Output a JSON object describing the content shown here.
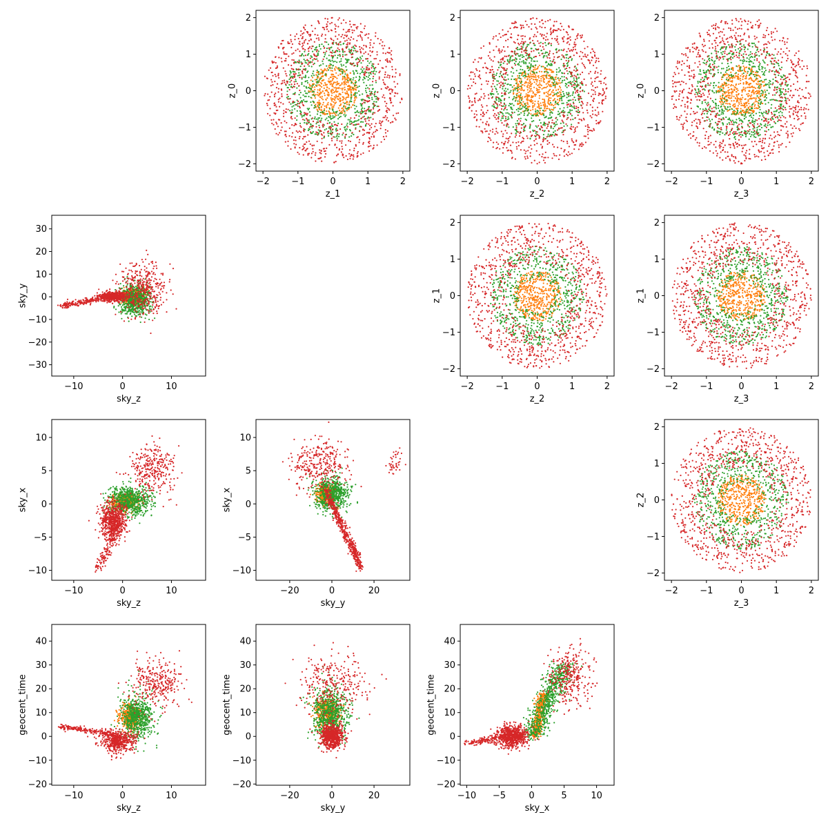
{
  "figure": {
    "colors": {
      "orange": "#ff7f0e",
      "green": "#2ca02c",
      "red": "#d62728",
      "frame": "#000000",
      "background": "#ffffff"
    }
  },
  "chart_data": [
    {
      "type": "scatter",
      "row": 0,
      "col": 1,
      "xlabel": "z_1",
      "ylabel": "z_0",
      "xlim": [
        -2.2,
        2.2
      ],
      "ylim": [
        -2.2,
        2.2
      ],
      "xticks": [
        -2,
        -1,
        0,
        1,
        2
      ],
      "yticks": [
        -2,
        -1,
        0,
        1,
        2
      ],
      "grid": false,
      "clusters": [
        {
          "color": "orange",
          "shape": "disk",
          "cx": 0,
          "cy": 0,
          "rx": 0.7,
          "ry": 0.7,
          "inner": 0,
          "count": 450
        },
        {
          "color": "green",
          "shape": "ring",
          "cx": 0,
          "cy": 0,
          "rx": 1.35,
          "ry": 1.35,
          "inner": 0.35,
          "count": 650
        },
        {
          "color": "red",
          "shape": "ring",
          "cx": 0,
          "cy": 0,
          "rx": 2.0,
          "ry": 2.0,
          "inner": 0.45,
          "count": 900
        }
      ]
    },
    {
      "type": "scatter",
      "row": 0,
      "col": 2,
      "xlabel": "z_2",
      "ylabel": "z_0",
      "xlim": [
        -2.2,
        2.2
      ],
      "ylim": [
        -2.2,
        2.2
      ],
      "xticks": [
        -2,
        -1,
        0,
        1,
        2
      ],
      "yticks": [
        -2,
        -1,
        0,
        1,
        2
      ],
      "grid": false,
      "clusters": [
        {
          "color": "orange",
          "shape": "disk",
          "cx": 0,
          "cy": 0,
          "rx": 0.7,
          "ry": 0.7,
          "inner": 0,
          "count": 450
        },
        {
          "color": "green",
          "shape": "ring",
          "cx": 0,
          "cy": 0,
          "rx": 1.35,
          "ry": 1.35,
          "inner": 0.35,
          "count": 650
        },
        {
          "color": "red",
          "shape": "ring",
          "cx": 0,
          "cy": 0,
          "rx": 2.0,
          "ry": 2.0,
          "inner": 0.45,
          "count": 900
        }
      ]
    },
    {
      "type": "scatter",
      "row": 0,
      "col": 3,
      "xlabel": "z_3",
      "ylabel": "z_0",
      "xlim": [
        -2.2,
        2.2
      ],
      "ylim": [
        -2.2,
        2.2
      ],
      "xticks": [
        -2,
        -1,
        0,
        1,
        2
      ],
      "yticks": [
        -2,
        -1,
        0,
        1,
        2
      ],
      "grid": false,
      "clusters": [
        {
          "color": "orange",
          "shape": "disk",
          "cx": 0,
          "cy": 0,
          "rx": 0.7,
          "ry": 0.7,
          "inner": 0,
          "count": 450
        },
        {
          "color": "green",
          "shape": "ring",
          "cx": 0,
          "cy": 0,
          "rx": 1.35,
          "ry": 1.35,
          "inner": 0.35,
          "count": 650
        },
        {
          "color": "red",
          "shape": "ring",
          "cx": 0,
          "cy": 0,
          "rx": 2.0,
          "ry": 2.0,
          "inner": 0.45,
          "count": 900
        }
      ]
    },
    {
      "type": "scatter",
      "row": 1,
      "col": 0,
      "xlabel": "sky_z",
      "ylabel": "sky_y",
      "xlim": [
        -14.5,
        17
      ],
      "ylim": [
        -35,
        36
      ],
      "xticks": [
        -10,
        0,
        10
      ],
      "yticks": [
        -30,
        -20,
        -10,
        0,
        10,
        20,
        30
      ],
      "grid": false,
      "clusters": [
        {
          "color": "orange",
          "shape": "gauss",
          "cx": 2,
          "cy": 0,
          "rx": 2.0,
          "ry": 3.0,
          "inner": 0,
          "count": 450
        },
        {
          "color": "green",
          "shape": "gauss",
          "cx": 2.5,
          "cy": -1,
          "rx": 3.0,
          "ry": 6.5,
          "inner": 0,
          "count": 650
        },
        {
          "color": "red",
          "shape": "gauss",
          "cx": -2,
          "cy": 0,
          "rx": 2.5,
          "ry": 2.0,
          "inner": 0,
          "count": 500
        },
        {
          "color": "red",
          "shape": "line",
          "x0": -12.5,
          "y0": -4,
          "x1": -3,
          "y1": 0,
          "spread": 1.2,
          "count": 200
        },
        {
          "color": "red",
          "shape": "gauss",
          "cx": 4,
          "cy": 3,
          "rx": 4.5,
          "ry": 11,
          "inner": 0,
          "count": 400
        }
      ]
    },
    {
      "type": "scatter",
      "row": 1,
      "col": 2,
      "xlabel": "z_2",
      "ylabel": "z_1",
      "xlim": [
        -2.2,
        2.2
      ],
      "ylim": [
        -2.2,
        2.2
      ],
      "xticks": [
        -2,
        -1,
        0,
        1,
        2
      ],
      "yticks": [
        -2,
        -1,
        0,
        1,
        2
      ],
      "grid": false,
      "clusters": [
        {
          "color": "orange",
          "shape": "disk",
          "cx": 0,
          "cy": 0,
          "rx": 0.7,
          "ry": 0.7,
          "inner": 0,
          "count": 450
        },
        {
          "color": "green",
          "shape": "ring",
          "cx": 0,
          "cy": 0,
          "rx": 1.35,
          "ry": 1.35,
          "inner": 0.35,
          "count": 650
        },
        {
          "color": "red",
          "shape": "ring",
          "cx": 0,
          "cy": 0,
          "rx": 2.0,
          "ry": 2.0,
          "inner": 0.45,
          "count": 900
        }
      ]
    },
    {
      "type": "scatter",
      "row": 1,
      "col": 3,
      "xlabel": "z_3",
      "ylabel": "z_1",
      "xlim": [
        -2.2,
        2.2
      ],
      "ylim": [
        -2.2,
        2.2
      ],
      "xticks": [
        -2,
        -1,
        0,
        1,
        2
      ],
      "yticks": [
        -2,
        -1,
        0,
        1,
        2
      ],
      "grid": false,
      "clusters": [
        {
          "color": "orange",
          "shape": "disk",
          "cx": 0,
          "cy": 0,
          "rx": 0.7,
          "ry": 0.7,
          "inner": 0,
          "count": 450
        },
        {
          "color": "green",
          "shape": "ring",
          "cx": 0,
          "cy": 0,
          "rx": 1.35,
          "ry": 1.35,
          "inner": 0.35,
          "count": 650
        },
        {
          "color": "red",
          "shape": "ring",
          "cx": 0,
          "cy": 0,
          "rx": 2.0,
          "ry": 2.0,
          "inner": 0.45,
          "count": 900
        }
      ]
    },
    {
      "type": "scatter",
      "row": 2,
      "col": 0,
      "xlabel": "sky_z",
      "ylabel": "sky_x",
      "xlim": [
        -14.5,
        17
      ],
      "ylim": [
        -11.5,
        12.7
      ],
      "xticks": [
        -10,
        0,
        10
      ],
      "yticks": [
        -10,
        -5,
        0,
        5,
        10
      ],
      "grid": false,
      "clusters": [
        {
          "color": "orange",
          "shape": "gauss",
          "cx": 0.5,
          "cy": 0.3,
          "rx": 2.5,
          "ry": 1.1,
          "inner": 0,
          "count": 450
        },
        {
          "color": "green",
          "shape": "gauss",
          "cx": 1.5,
          "cy": 0.5,
          "rx": 4.0,
          "ry": 2.0,
          "inner": 0,
          "count": 650
        },
        {
          "color": "red",
          "shape": "gauss",
          "cx": -2,
          "cy": -2.5,
          "rx": 2.5,
          "ry": 2.5,
          "inner": 0,
          "count": 600
        },
        {
          "color": "red",
          "shape": "line",
          "x0": -1,
          "y0": -3,
          "x1": -5,
          "y1": -10,
          "spread": 1.0,
          "count": 150
        },
        {
          "color": "red",
          "shape": "gauss",
          "cx": 6,
          "cy": 5,
          "rx": 4.0,
          "ry": 3.5,
          "inner": 0,
          "count": 300
        }
      ]
    },
    {
      "type": "scatter",
      "row": 2,
      "col": 1,
      "xlabel": "sky_y",
      "ylabel": "sky_x",
      "xlim": [
        -36,
        37
      ],
      "ylim": [
        -11.5,
        12.7
      ],
      "xticks": [
        -20,
        0,
        20
      ],
      "yticks": [
        -10,
        -5,
        0,
        5,
        10
      ],
      "grid": false,
      "clusters": [
        {
          "color": "orange",
          "shape": "gauss",
          "cx": -3,
          "cy": 1.5,
          "rx": 4.0,
          "ry": 1.3,
          "inner": 0,
          "count": 450
        },
        {
          "color": "green",
          "shape": "gauss",
          "cx": 0,
          "cy": 1.5,
          "rx": 7.0,
          "ry": 2.3,
          "inner": 0,
          "count": 650
        },
        {
          "color": "red",
          "shape": "line",
          "x0": -3,
          "y0": 2,
          "x1": 14,
          "y1": -9.5,
          "spread": 1.2,
          "count": 500
        },
        {
          "color": "red",
          "shape": "gauss",
          "cx": -6,
          "cy": 6,
          "rx": 13,
          "ry": 3.5,
          "inner": 0,
          "count": 300
        },
        {
          "color": "red",
          "shape": "gauss",
          "cx": 30,
          "cy": 6,
          "rx": 3.5,
          "ry": 2.0,
          "inner": 0,
          "count": 40
        }
      ]
    },
    {
      "type": "scatter",
      "row": 2,
      "col": 3,
      "xlabel": "z_3",
      "ylabel": "z_2",
      "xlim": [
        -2.2,
        2.2
      ],
      "ylim": [
        -2.2,
        2.2
      ],
      "xticks": [
        -2,
        -1,
        0,
        1,
        2
      ],
      "yticks": [
        -2,
        -1,
        0,
        1,
        2
      ],
      "grid": false,
      "clusters": [
        {
          "color": "orange",
          "shape": "disk",
          "cx": 0,
          "cy": 0,
          "rx": 0.7,
          "ry": 0.7,
          "inner": 0,
          "count": 450
        },
        {
          "color": "green",
          "shape": "ring",
          "cx": 0,
          "cy": 0,
          "rx": 1.35,
          "ry": 1.35,
          "inner": 0.35,
          "count": 650
        },
        {
          "color": "red",
          "shape": "ring",
          "cx": 0,
          "cy": 0,
          "rx": 2.0,
          "ry": 2.0,
          "inner": 0.45,
          "count": 900
        }
      ]
    },
    {
      "type": "scatter",
      "row": 3,
      "col": 0,
      "xlabel": "sky_z",
      "ylabel": "geocent_time",
      "xlim": [
        -14.5,
        17
      ],
      "ylim": [
        -20.5,
        47
      ],
      "xticks": [
        -10,
        0,
        10
      ],
      "yticks": [
        -20,
        -10,
        0,
        10,
        20,
        30,
        40
      ],
      "grid": false,
      "clusters": [
        {
          "color": "orange",
          "shape": "gauss",
          "cx": 1.5,
          "cy": 8,
          "rx": 2.0,
          "ry": 5.0,
          "inner": 0,
          "count": 450
        },
        {
          "color": "green",
          "shape": "gauss",
          "cx": 3,
          "cy": 8,
          "rx": 3.0,
          "ry": 9.0,
          "inner": 0,
          "count": 650
        },
        {
          "color": "red",
          "shape": "gauss",
          "cx": -1,
          "cy": -2,
          "rx": 3.0,
          "ry": 4.0,
          "inner": 0,
          "count": 500
        },
        {
          "color": "red",
          "shape": "line",
          "x0": -12.5,
          "y0": 4,
          "x1": -2,
          "y1": 1,
          "spread": 1.2,
          "count": 200
        },
        {
          "color": "red",
          "shape": "gauss",
          "cx": 7,
          "cy": 22,
          "rx": 4.5,
          "ry": 10,
          "inner": 0,
          "count": 300
        }
      ]
    },
    {
      "type": "scatter",
      "row": 3,
      "col": 1,
      "xlabel": "sky_y",
      "ylabel": "geocent_time",
      "xlim": [
        -36,
        37
      ],
      "ylim": [
        -20.5,
        47
      ],
      "xticks": [
        -20,
        0,
        20
      ],
      "yticks": [
        -20,
        -10,
        0,
        10,
        20,
        30,
        40
      ],
      "grid": false,
      "clusters": [
        {
          "color": "orange",
          "shape": "gauss",
          "cx": -2,
          "cy": 10,
          "rx": 5.0,
          "ry": 5.5,
          "inner": 0,
          "count": 450
        },
        {
          "color": "green",
          "shape": "gauss",
          "cx": -1,
          "cy": 10,
          "rx": 8.0,
          "ry": 10,
          "inner": 0,
          "count": 650
        },
        {
          "color": "red",
          "shape": "gauss",
          "cx": 0,
          "cy": 0,
          "rx": 5.0,
          "ry": 4.5,
          "inner": 0,
          "count": 700
        },
        {
          "color": "red",
          "shape": "gauss",
          "cx": 0,
          "cy": 22,
          "rx": 14,
          "ry": 11,
          "inner": 0,
          "count": 300
        }
      ]
    },
    {
      "type": "scatter",
      "row": 3,
      "col": 2,
      "xlabel": "sky_x",
      "ylabel": "geocent_time",
      "xlim": [
        -11,
        12.7
      ],
      "ylim": [
        -20.5,
        47
      ],
      "xticks": [
        -10,
        -5,
        0,
        5,
        10
      ],
      "yticks": [
        -20,
        -10,
        0,
        10,
        20,
        30,
        40
      ],
      "grid": false,
      "clusters": [
        {
          "color": "orange",
          "shape": "line",
          "x0": 0.5,
          "y0": 0,
          "x1": 1.8,
          "y1": 18,
          "spread": 0.8,
          "count": 450
        },
        {
          "color": "green",
          "shape": "line",
          "x0": 0,
          "y0": 0,
          "x1": 5,
          "y1": 30,
          "spread": 1.8,
          "count": 650
        },
        {
          "color": "red",
          "shape": "gauss",
          "cx": -3,
          "cy": 0,
          "rx": 2.2,
          "ry": 4.0,
          "inner": 0,
          "count": 700
        },
        {
          "color": "red",
          "shape": "line",
          "x0": -10,
          "y0": -3,
          "x1": -4,
          "y1": 0,
          "spread": 1.2,
          "count": 150
        },
        {
          "color": "red",
          "shape": "gauss",
          "cx": 6,
          "cy": 25,
          "rx": 3.0,
          "ry": 11,
          "inner": 0,
          "count": 300
        }
      ]
    }
  ]
}
